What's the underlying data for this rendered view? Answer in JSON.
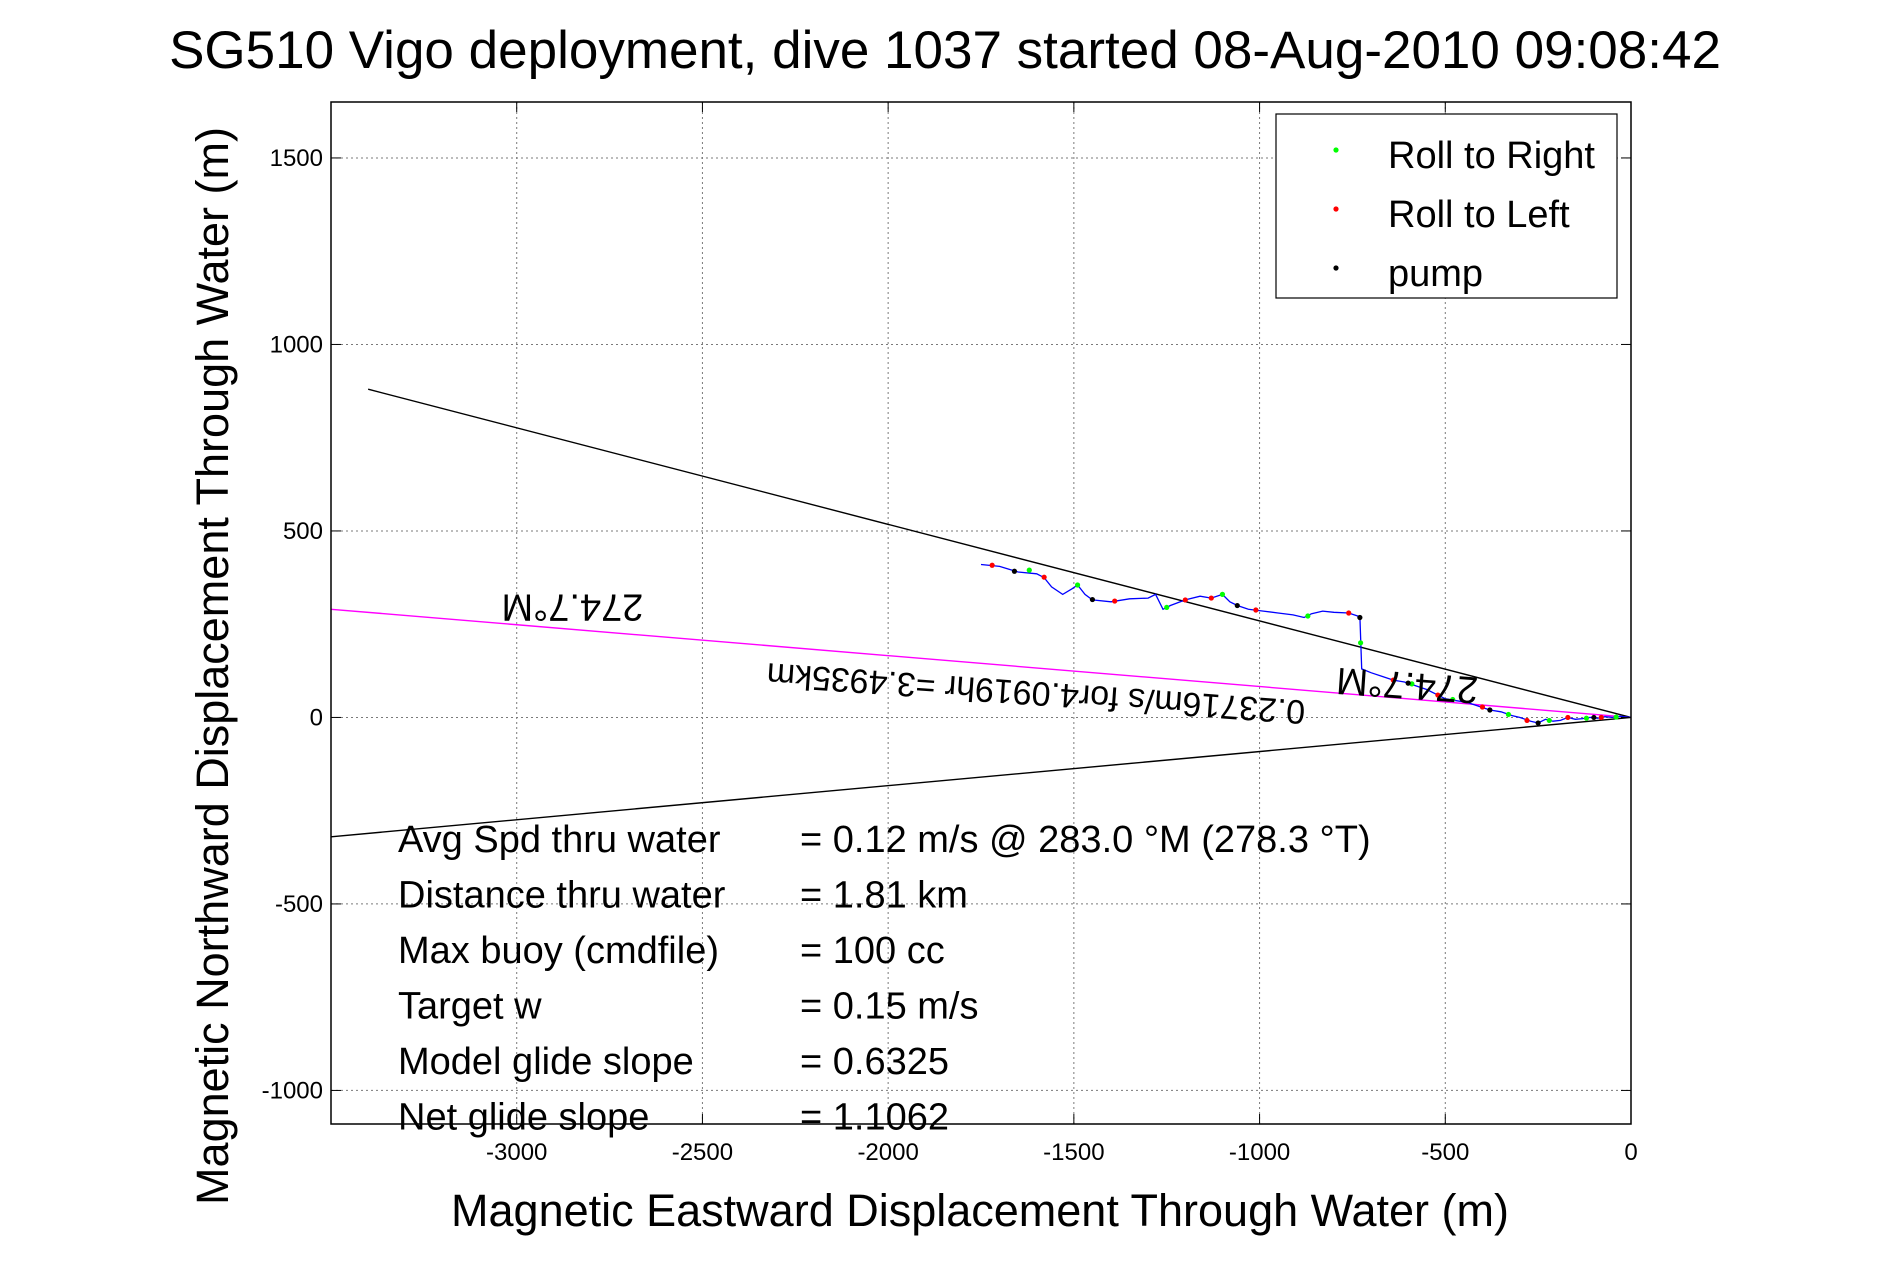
{
  "chart_data": {
    "type": "line",
    "title": "SG510 Vigo deployment, dive 1037 started 08-Aug-2010 09:08:42",
    "xlabel": "Magnetic Eastward Displacement Through Water (m)",
    "ylabel": "Magnetic Northward Displacement Through Water (m)",
    "xlim": [
      -3500,
      0
    ],
    "ylim": [
      -1090,
      1650
    ],
    "xticks": [
      -3000,
      -2500,
      -2000,
      -1500,
      -1000,
      -500,
      0
    ],
    "yticks": [
      1500,
      1000,
      500,
      0,
      -500,
      -1000
    ],
    "grid": true,
    "legend_position": "top-right",
    "legend": [
      {
        "label": "Roll to Right",
        "color": "#00ff00"
      },
      {
        "label": "Roll to Left",
        "color": "#ff0000"
      },
      {
        "label": "pump",
        "color": "#000000"
      }
    ],
    "track_color": "#0000ff",
    "track": [
      [
        -1750,
        410
      ],
      [
        -1700,
        405
      ],
      [
        -1650,
        390
      ],
      [
        -1600,
        385
      ],
      [
        -1580,
        375
      ],
      [
        -1560,
        350
      ],
      [
        -1530,
        330
      ],
      [
        -1505,
        345
      ],
      [
        -1490,
        355
      ],
      [
        -1470,
        330
      ],
      [
        -1450,
        315
      ],
      [
        -1400,
        310
      ],
      [
        -1350,
        318
      ],
      [
        -1300,
        320
      ],
      [
        -1280,
        330
      ],
      [
        -1260,
        290
      ],
      [
        -1240,
        300
      ],
      [
        -1200,
        315
      ],
      [
        -1160,
        325
      ],
      [
        -1130,
        320
      ],
      [
        -1100,
        330
      ],
      [
        -1080,
        310
      ],
      [
        -1060,
        300
      ],
      [
        -1030,
        290
      ],
      [
        -990,
        285
      ],
      [
        -950,
        280
      ],
      [
        -910,
        275
      ],
      [
        -880,
        268
      ],
      [
        -860,
        278
      ],
      [
        -830,
        285
      ],
      [
        -800,
        282
      ],
      [
        -760,
        280
      ],
      [
        -730,
        270
      ],
      [
        -725,
        130
      ],
      [
        -700,
        120
      ],
      [
        -670,
        110
      ],
      [
        -640,
        100
      ],
      [
        -610,
        95
      ],
      [
        -580,
        85
      ],
      [
        -550,
        75
      ],
      [
        -520,
        60
      ],
      [
        -500,
        50
      ],
      [
        -470,
        45
      ],
      [
        -440,
        40
      ],
      [
        -410,
        30
      ],
      [
        -380,
        20
      ],
      [
        -350,
        15
      ],
      [
        -320,
        5
      ],
      [
        -300,
        0
      ],
      [
        -270,
        -10
      ],
      [
        -250,
        -15
      ],
      [
        -230,
        -5
      ],
      [
        -210,
        -10
      ],
      [
        -190,
        -8
      ],
      [
        -170,
        0
      ],
      [
        -150,
        -5
      ],
      [
        -130,
        -3
      ],
      [
        -110,
        0
      ],
      [
        -90,
        -2
      ],
      [
        -70,
        2
      ],
      [
        -50,
        0
      ],
      [
        -30,
        3
      ],
      [
        0,
        0
      ]
    ],
    "roll_right_points": [
      [
        -1620,
        395
      ],
      [
        -1490,
        355
      ],
      [
        -1250,
        295
      ],
      [
        -1100,
        330
      ],
      [
        -870,
        272
      ],
      [
        -728,
        200
      ],
      [
        -590,
        90
      ],
      [
        -480,
        48
      ],
      [
        -330,
        8
      ],
      [
        -220,
        -8
      ],
      [
        -120,
        -2
      ],
      [
        -40,
        1
      ]
    ],
    "roll_left_points": [
      [
        -1720,
        408
      ],
      [
        -1580,
        376
      ],
      [
        -1390,
        312
      ],
      [
        -1200,
        315
      ],
      [
        -1130,
        320
      ],
      [
        -1010,
        288
      ],
      [
        -760,
        280
      ],
      [
        -640,
        100
      ],
      [
        -520,
        60
      ],
      [
        -400,
        28
      ],
      [
        -280,
        -8
      ],
      [
        -170,
        0
      ],
      [
        -80,
        0
      ]
    ],
    "pump_points": [
      [
        -1660,
        392
      ],
      [
        -1450,
        316
      ],
      [
        -1060,
        300
      ],
      [
        -730,
        268
      ],
      [
        -600,
        92
      ],
      [
        -380,
        20
      ],
      [
        -250,
        -15
      ],
      [
        -100,
        0
      ]
    ],
    "lines": [
      {
        "name": "upper",
        "color": "#000000",
        "from": [
          -3400,
          880
        ],
        "to": [
          0,
          0
        ]
      },
      {
        "name": "lower",
        "color": "#000000",
        "from": [
          -3500,
          -320
        ],
        "to": [
          0,
          0
        ]
      },
      {
        "name": "heading",
        "color": "#ff00ff",
        "from": [
          -3500,
          290
        ],
        "to": [
          0,
          0
        ]
      }
    ],
    "annotations": [
      {
        "text": "274.7°M",
        "at": [
          -2850,
          330
        ],
        "rotation_deg": 180
      },
      {
        "text": "0.23716m/s for4.0919hr =3.4935km",
        "at": [
          -1600,
          95
        ],
        "rotation_deg": 184
      },
      {
        "text": "274.7°M",
        "at": [
          -600,
          120
        ],
        "rotation_deg": 184
      }
    ],
    "stats": [
      {
        "label": "Avg Spd thru water",
        "value": "=  0.12 m/s @ 283.0 °M (278.3 °T)"
      },
      {
        "label": "Distance thru water",
        "value": "=  1.81 km"
      },
      {
        "label": "Max buoy (cmdfile)",
        "value": "= 100 cc"
      },
      {
        "label": "Target w",
        "value": "= 0.15 m/s"
      },
      {
        "label": "Model glide slope",
        "value": "= 0.6325"
      },
      {
        "label": "Net glide slope",
        "value": "= 1.1062"
      }
    ]
  }
}
